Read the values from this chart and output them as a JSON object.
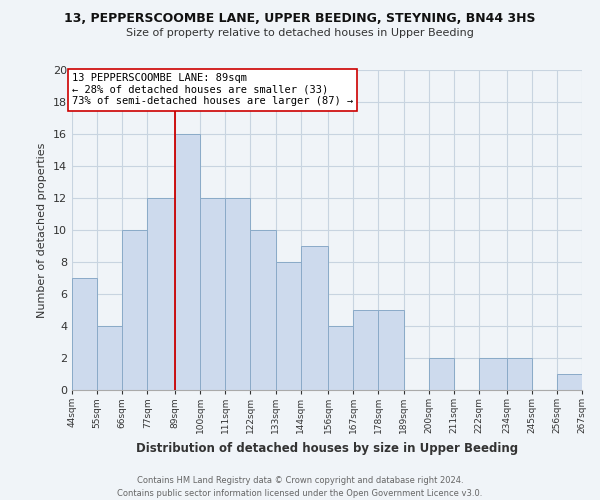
{
  "title1": "13, PEPPERSCOOMBE LANE, UPPER BEEDING, STEYNING, BN44 3HS",
  "title2": "Size of property relative to detached houses in Upper Beeding",
  "xlabel": "Distribution of detached houses by size in Upper Beeding",
  "ylabel": "Number of detached properties",
  "bins": [
    44,
    55,
    66,
    77,
    89,
    100,
    111,
    122,
    133,
    144,
    156,
    167,
    178,
    189,
    200,
    211,
    222,
    234,
    245,
    256,
    267
  ],
  "counts": [
    7,
    4,
    10,
    12,
    16,
    12,
    12,
    10,
    8,
    9,
    4,
    5,
    5,
    0,
    2,
    0,
    2,
    2,
    0,
    1
  ],
  "tick_labels": [
    "44sqm",
    "55sqm",
    "66sqm",
    "77sqm",
    "89sqm",
    "100sqm",
    "111sqm",
    "122sqm",
    "133sqm",
    "144sqm",
    "156sqm",
    "167sqm",
    "178sqm",
    "189sqm",
    "200sqm",
    "211sqm",
    "222sqm",
    "234sqm",
    "245sqm",
    "256sqm",
    "267sqm"
  ],
  "bar_color": "#cddaed",
  "bar_edge_color": "#8aaac8",
  "property_line_x": 89,
  "property_line_color": "#cc0000",
  "annotation_text": "13 PEPPERSCOOMBE LANE: 89sqm\n← 28% of detached houses are smaller (33)\n73% of semi-detached houses are larger (87) →",
  "annotation_box_color": "#ffffff",
  "annotation_box_edge": "#cc0000",
  "ylim": [
    0,
    20
  ],
  "yticks": [
    0,
    2,
    4,
    6,
    8,
    10,
    12,
    14,
    16,
    18,
    20
  ],
  "footer": "Contains HM Land Registry data © Crown copyright and database right 2024.\nContains public sector information licensed under the Open Government Licence v3.0.",
  "grid_color": "#c8d4e0",
  "background_color": "#f0f4f8"
}
